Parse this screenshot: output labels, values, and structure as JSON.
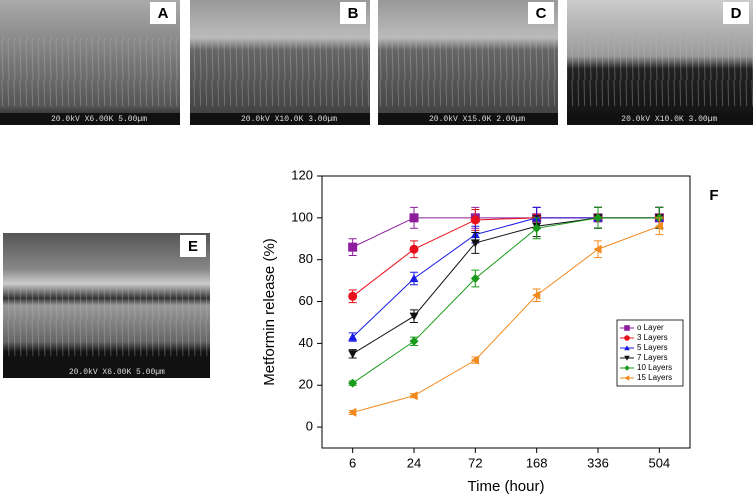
{
  "panels": [
    {
      "label": "A",
      "caption": "20.0kV X6.00K 5.00µm"
    },
    {
      "label": "B",
      "caption": "20.0kV X10.0K 3.00µm"
    },
    {
      "label": "C",
      "caption": "20.0kV X15.0K 2.00µm"
    },
    {
      "label": "D",
      "caption": "20.0kV X10.0K 3.00µm"
    },
    {
      "label": "E",
      "caption": "20.0kV X6.00K 5.00µm"
    }
  ],
  "chart_data": {
    "type": "line",
    "label": "F",
    "x_label": "Time (hour)",
    "y_label": "Metformin release (%)",
    "categories": [
      "6",
      "24",
      "72",
      "168",
      "336",
      "504"
    ],
    "ylim": [
      -10,
      120
    ],
    "yticks": [
      0,
      20,
      40,
      60,
      80,
      100,
      120
    ],
    "series": [
      {
        "name": "o Layer",
        "color": "#8e1d9e",
        "marker": "square",
        "values": [
          86,
          100,
          100,
          100,
          100,
          100
        ],
        "errors": [
          4,
          5,
          5,
          5,
          5,
          5
        ]
      },
      {
        "name": "3 Layers",
        "color": "#e8101a",
        "marker": "circle",
        "values": [
          62.5,
          85,
          99,
          100,
          100,
          100
        ],
        "errors": [
          3,
          4,
          5,
          5,
          5,
          5
        ]
      },
      {
        "name": "5 Layers",
        "color": "#1a1ae6",
        "marker": "triangle-up",
        "values": [
          43,
          71,
          92,
          100,
          100,
          100
        ],
        "errors": [
          2,
          3,
          4,
          5,
          5,
          5
        ]
      },
      {
        "name": "7 Layers",
        "color": "#111111",
        "marker": "triangle-down",
        "values": [
          35,
          53,
          88,
          96,
          100,
          100
        ],
        "errors": [
          2,
          3,
          5,
          5,
          5,
          5
        ]
      },
      {
        "name": "10 Layers",
        "color": "#1a9a1a",
        "marker": "diamond",
        "values": [
          21,
          41,
          71,
          95,
          100,
          100
        ],
        "errors": [
          1,
          2,
          4,
          5,
          5,
          5
        ]
      },
      {
        "name": "15 Layers",
        "color": "#f28a1e",
        "marker": "triangle-left",
        "values": [
          7,
          15,
          32,
          63,
          85,
          96
        ],
        "errors": [
          1,
          1,
          1.5,
          3,
          4,
          4
        ]
      }
    ]
  }
}
